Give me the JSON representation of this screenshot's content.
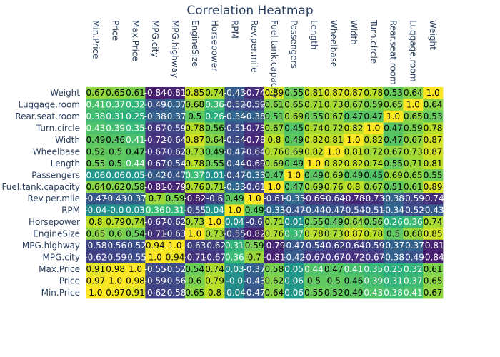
{
  "chart_data": {
    "type": "heatmap",
    "title": "Correlation Heatmap",
    "colorscale": "viridis",
    "zlim": [
      -1,
      1
    ],
    "x_labels": [
      "Min.Price",
      "Price",
      "Max.Price",
      "MPG.city",
      "MPG.highway",
      "EngineSize",
      "Horsepower",
      "RPM",
      "Rev.per.mile",
      "Fuel.tank.capacity",
      "Passengers",
      "Length",
      "Wheelbase",
      "Width",
      "Turn.circle",
      "Rear.seat.room",
      "Luggage.room",
      "Weight"
    ],
    "y_labels": [
      "Weight",
      "Luggage.room",
      "Rear.seat.room",
      "Turn.circle",
      "Width",
      "Wheelbase",
      "Length",
      "Passengers",
      "Fuel.tank.capacity",
      "Rev.per.mile",
      "RPM",
      "Horsepower",
      "EngineSize",
      "MPG.highway",
      "MPG.city",
      "Max.Price",
      "Price",
      "Min.Price"
    ],
    "z": [
      [
        0.67,
        0.65,
        0.61,
        -0.84,
        -0.81,
        0.85,
        0.74,
        -0.43,
        -0.74,
        0.89,
        0.55,
        0.81,
        0.87,
        0.87,
        0.78,
        0.53,
        0.64,
        1.0
      ],
      [
        0.41,
        0.37,
        0.32,
        -0.49,
        -0.37,
        0.68,
        0.36,
        -0.52,
        -0.59,
        0.61,
        0.65,
        0.71,
        0.73,
        0.67,
        0.59,
        0.65,
        1.0,
        0.64
      ],
      [
        0.38,
        0.31,
        0.25,
        -0.38,
        -0.37,
        0.5,
        0.26,
        -0.34,
        -0.38,
        0.51,
        0.69,
        0.55,
        0.67,
        0.47,
        0.47,
        1.0,
        0.65,
        0.53
      ],
      [
        0.43,
        0.39,
        0.35,
        -0.67,
        -0.59,
        0.78,
        0.56,
        -0.51,
        -0.73,
        0.67,
        0.45,
        0.74,
        0.72,
        0.82,
        1.0,
        0.47,
        0.59,
        0.78
      ],
      [
        0.49,
        0.46,
        0.41,
        -0.72,
        -0.64,
        0.87,
        0.64,
        -0.54,
        -0.78,
        0.8,
        0.49,
        0.82,
        0.81,
        1.0,
        0.82,
        0.47,
        0.67,
        0.87
      ],
      [
        0.52,
        0.5,
        0.47,
        -0.67,
        -0.62,
        0.73,
        0.49,
        -0.47,
        -0.64,
        0.76,
        0.69,
        0.82,
        1.0,
        0.81,
        0.72,
        0.67,
        0.73,
        0.87
      ],
      [
        0.55,
        0.5,
        0.44,
        -0.67,
        -0.54,
        0.78,
        0.55,
        -0.44,
        -0.69,
        0.69,
        0.49,
        1.0,
        0.82,
        0.82,
        0.74,
        0.55,
        0.71,
        0.81
      ],
      [
        0.06,
        0.06,
        0.05,
        -0.42,
        -0.47,
        0.37,
        0.01,
        -0.47,
        -0.33,
        0.47,
        1.0,
        0.49,
        0.69,
        0.49,
        0.45,
        0.69,
        0.65,
        0.55
      ],
      [
        0.64,
        0.62,
        0.58,
        -0.81,
        -0.79,
        0.76,
        0.71,
        -0.33,
        -0.61,
        1.0,
        0.47,
        0.69,
        0.76,
        0.8,
        0.67,
        0.51,
        0.61,
        0.89
      ],
      [
        -0.47,
        -0.43,
        -0.37,
        0.7,
        0.59,
        -0.82,
        -0.6,
        0.49,
        1.0,
        -0.61,
        -0.33,
        -0.69,
        -0.64,
        -0.78,
        -0.73,
        -0.38,
        -0.59,
        -0.74
      ],
      [
        -0.04,
        -0.0,
        0.03,
        0.36,
        0.31,
        -0.55,
        0.04,
        1.0,
        0.49,
        -0.33,
        -0.47,
        -0.44,
        -0.47,
        -0.54,
        -0.51,
        -0.34,
        -0.52,
        -0.43
      ],
      [
        0.8,
        0.79,
        0.74,
        -0.67,
        -0.62,
        0.73,
        1.0,
        0.04,
        -0.6,
        0.71,
        0.01,
        0.55,
        0.49,
        0.64,
        0.56,
        0.26,
        0.36,
        0.74
      ],
      [
        0.65,
        0.6,
        0.54,
        -0.71,
        -0.63,
        1.0,
        0.73,
        -0.55,
        -0.82,
        0.76,
        0.37,
        0.78,
        0.73,
        0.87,
        0.78,
        0.5,
        0.68,
        0.85
      ],
      [
        -0.58,
        -0.56,
        -0.52,
        0.94,
        1.0,
        -0.63,
        -0.62,
        0.31,
        0.59,
        -0.79,
        -0.47,
        -0.54,
        -0.62,
        -0.64,
        -0.59,
        -0.37,
        -0.37,
        -0.81
      ],
      [
        -0.62,
        -0.59,
        -0.55,
        1.0,
        0.94,
        -0.71,
        -0.67,
        0.36,
        0.7,
        -0.81,
        -0.42,
        -0.67,
        -0.67,
        -0.72,
        -0.67,
        -0.38,
        -0.49,
        -0.84
      ],
      [
        0.91,
        0.98,
        1.0,
        -0.55,
        -0.52,
        0.54,
        0.74,
        0.03,
        -0.37,
        0.58,
        0.05,
        0.44,
        0.47,
        0.41,
        0.35,
        0.25,
        0.32,
        0.61
      ],
      [
        0.97,
        1.0,
        0.98,
        -0.59,
        -0.56,
        0.6,
        0.79,
        -0.0,
        -0.43,
        0.62,
        0.06,
        0.5,
        0.5,
        0.46,
        0.39,
        0.31,
        0.37,
        0.65
      ],
      [
        1.0,
        0.97,
        0.91,
        -0.62,
        -0.58,
        0.65,
        0.8,
        -0.04,
        -0.47,
        0.64,
        0.06,
        0.55,
        0.52,
        0.49,
        0.43,
        0.38,
        0.41,
        0.67
      ]
    ],
    "cell_labels": [
      [
        "0.67",
        "0.65",
        "0.61",
        "-0.84",
        "-0.81",
        "0.85",
        "0.74",
        "-0.43",
        "-0.74",
        "0.89",
        "0.55",
        "0.81",
        "0.87",
        "0.87",
        "0.78",
        "0.53",
        "0.64",
        "1.0"
      ],
      [
        "0.41",
        "0.37",
        "0.32",
        "-0.49",
        "-0.37",
        "0.68",
        "0.36",
        "-0.52",
        "-0.59",
        "0.61",
        "0.65",
        "0.71",
        "0.73",
        "0.67",
        "0.59",
        "0.65",
        "1.0",
        "0.64"
      ],
      [
        "0.38",
        "0.31",
        "0.25",
        "-0.38",
        "-0.37",
        "0.5",
        "0.26",
        "-0.34",
        "-0.38",
        "0.51",
        "0.69",
        "0.55",
        "0.67",
        "0.47",
        "0.47",
        "1.0",
        "0.65",
        "0.53"
      ],
      [
        "0.43",
        "0.39",
        "0.35",
        "-0.67",
        "-0.59",
        "0.78",
        "0.56",
        "-0.51",
        "-0.73",
        "0.67",
        "0.45",
        "0.74",
        "0.72",
        "0.82",
        "1.0",
        "0.47",
        "0.59",
        "0.78"
      ],
      [
        "0.49",
        "0.46",
        "0.41",
        "-0.72",
        "-0.64",
        "0.87",
        "0.64",
        "-0.54",
        "-0.78",
        "0.8",
        "0.49",
        "0.82",
        "0.81",
        "1.0",
        "0.82",
        "0.47",
        "0.67",
        "0.87"
      ],
      [
        "0.52",
        "0.5",
        "0.47",
        "-0.67",
        "-0.62",
        "0.73",
        "0.49",
        "-0.47",
        "-0.64",
        "0.76",
        "0.69",
        "0.82",
        "1.0",
        "0.81",
        "0.72",
        "0.67",
        "0.73",
        "0.87"
      ],
      [
        "0.55",
        "0.5",
        "0.44",
        "-0.67",
        "-0.54",
        "0.78",
        "0.55",
        "-0.44",
        "-0.69",
        "0.69",
        "0.49",
        "1.0",
        "0.82",
        "0.82",
        "0.74",
        "0.55",
        "0.71",
        "0.81"
      ],
      [
        "0.06",
        "0.06",
        "0.05",
        "-0.42",
        "-0.47",
        "0.37",
        "0.01",
        "-0.47",
        "-0.33",
        "0.47",
        "1.0",
        "0.49",
        "0.69",
        "0.49",
        "0.45",
        "0.69",
        "0.65",
        "0.55"
      ],
      [
        "0.64",
        "0.62",
        "0.58",
        "-0.81",
        "-0.79",
        "0.76",
        "0.71",
        "-0.33",
        "-0.61",
        "1.0",
        "0.47",
        "0.69",
        "0.76",
        "0.8",
        "0.67",
        "0.51",
        "0.61",
        "0.89"
      ],
      [
        "-0.47",
        "-0.43",
        "-0.37",
        "0.7",
        "0.59",
        "-0.82",
        "-0.6",
        "0.49",
        "1.0",
        "-0.61",
        "-0.33",
        "-0.69",
        "-0.64",
        "-0.78",
        "-0.73",
        "-0.38",
        "-0.59",
        "-0.74"
      ],
      [
        "-0.04",
        "-0.0",
        "0.03",
        "0.36",
        "0.31",
        "-0.55",
        "0.04",
        "1.0",
        "0.49",
        "-0.33",
        "-0.47",
        "-0.44",
        "-0.47",
        "-0.54",
        "-0.51",
        "-0.34",
        "-0.52",
        "-0.43"
      ],
      [
        "0.8",
        "0.79",
        "0.74",
        "-0.67",
        "-0.62",
        "0.73",
        "1.0",
        "0.04",
        "-0.6",
        "0.71",
        "0.01",
        "0.55",
        "0.49",
        "0.64",
        "0.56",
        "0.26",
        "0.36",
        "0.74"
      ],
      [
        "0.65",
        "0.6",
        "0.54",
        "-0.71",
        "-0.63",
        "1.0",
        "0.73",
        "-0.55",
        "-0.82",
        "0.76",
        "0.37",
        "0.78",
        "0.73",
        "0.87",
        "0.78",
        "0.5",
        "0.68",
        "0.85"
      ],
      [
        "-0.58",
        "-0.56",
        "-0.52",
        "0.94",
        "1.0",
        "-0.63",
        "-0.62",
        "0.31",
        "0.59",
        "-0.79",
        "-0.47",
        "-0.54",
        "-0.62",
        "-0.64",
        "-0.59",
        "-0.37",
        "-0.37",
        "-0.81"
      ],
      [
        "-0.62",
        "-0.59",
        "-0.55",
        "1.0",
        "0.94",
        "-0.71",
        "-0.67",
        "0.36",
        "0.7",
        "-0.81",
        "-0.42",
        "-0.67",
        "-0.67",
        "-0.72",
        "-0.67",
        "-0.38",
        "-0.49",
        "-0.84"
      ],
      [
        "0.91",
        "0.98",
        "1.0",
        "-0.55",
        "-0.52",
        "0.54",
        "0.74",
        "0.03",
        "-0.37",
        "0.58",
        "0.05",
        "0.44",
        "0.47",
        "0.41",
        "0.35",
        "0.25",
        "0.32",
        "0.61"
      ],
      [
        "0.97",
        "1.0",
        "0.98",
        "-0.59",
        "-0.56",
        "0.6",
        "0.79",
        "-0.0",
        "-0.43",
        "0.62",
        "0.06",
        "0.5",
        "0.5",
        "0.46",
        "0.39",
        "0.31",
        "0.37",
        "0.65"
      ],
      [
        "1.0",
        "0.97",
        "0.91",
        "-0.62",
        "-0.58",
        "0.65",
        "0.8",
        "-0.04",
        "-0.47",
        "0.64",
        "0.06",
        "0.55",
        "0.52",
        "0.49",
        "0.43",
        "0.38",
        "0.41",
        "0.67"
      ]
    ],
    "xlabel": "",
    "ylabel": "",
    "x_axis_position": "top",
    "colorbar": false,
    "grid": false,
    "label_colors": {
      "light": "#ffffff",
      "dark": "#000000"
    }
  }
}
